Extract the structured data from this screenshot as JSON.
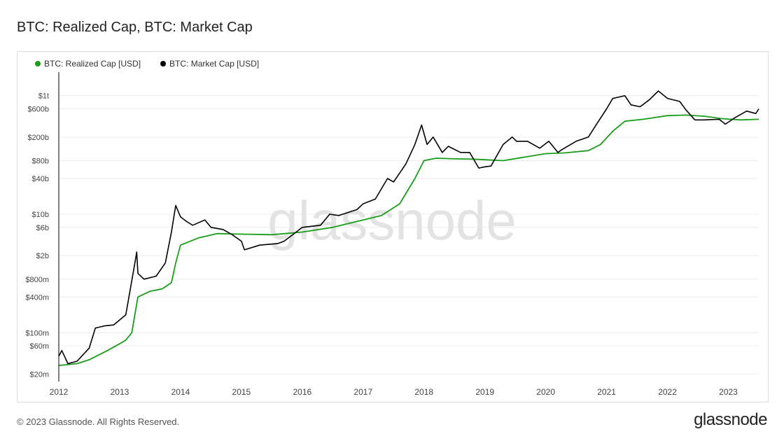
{
  "page": {
    "title": "BTC: Realized Cap, BTC: Market Cap",
    "footer": "© 2023 Glassnode. All Rights Reserved.",
    "brand": "glassnode",
    "watermark": "glassnode"
  },
  "chart_data": {
    "type": "line",
    "title": "BTC: Realized Cap, BTC: Market Cap",
    "xlabel": "",
    "ylabel": "",
    "yscale": "log",
    "ylim": [
      15000000,
      2500000000000
    ],
    "xlim": [
      2012.0,
      2023.5
    ],
    "grid": true,
    "legend_position": "top-left",
    "y_ticks": [
      {
        "value": 20000000,
        "label": "$20m"
      },
      {
        "value": 60000000,
        "label": "$60m"
      },
      {
        "value": 100000000,
        "label": "$100m"
      },
      {
        "value": 400000000,
        "label": "$400m"
      },
      {
        "value": 800000000,
        "label": "$800m"
      },
      {
        "value": 2000000000,
        "label": "$2b"
      },
      {
        "value": 6000000000,
        "label": "$6b"
      },
      {
        "value": 10000000000,
        "label": "$10b"
      },
      {
        "value": 40000000000,
        "label": "$40b"
      },
      {
        "value": 80000000000,
        "label": "$80b"
      },
      {
        "value": 200000000000,
        "label": "$200b"
      },
      {
        "value": 600000000000,
        "label": "$600b"
      },
      {
        "value": 1000000000000,
        "label": "$1t"
      }
    ],
    "x_ticks": [
      {
        "value": 2012,
        "label": "2012"
      },
      {
        "value": 2013,
        "label": "2013"
      },
      {
        "value": 2014,
        "label": "2014"
      },
      {
        "value": 2015,
        "label": "2015"
      },
      {
        "value": 2016,
        "label": "2016"
      },
      {
        "value": 2017,
        "label": "2017"
      },
      {
        "value": 2018,
        "label": "2018"
      },
      {
        "value": 2019,
        "label": "2019"
      },
      {
        "value": 2020,
        "label": "2020"
      },
      {
        "value": 2021,
        "label": "2021"
      },
      {
        "value": 2022,
        "label": "2022"
      },
      {
        "value": 2023,
        "label": "2023"
      }
    ],
    "series": [
      {
        "name": "BTC: Realized Cap [USD]",
        "color": "#1a9e1a",
        "x": [
          2012.0,
          2012.3,
          2012.5,
          2012.8,
          2013.0,
          2013.1,
          2013.2,
          2013.3,
          2013.5,
          2013.7,
          2013.85,
          2013.92,
          2014.0,
          2014.3,
          2014.6,
          2015.0,
          2015.5,
          2016.0,
          2016.5,
          2017.0,
          2017.3,
          2017.6,
          2017.85,
          2018.0,
          2018.2,
          2018.5,
          2018.8,
          2019.0,
          2019.3,
          2019.6,
          2020.0,
          2020.3,
          2020.7,
          2020.9,
          2021.1,
          2021.3,
          2021.6,
          2022.0,
          2022.3,
          2022.6,
          2022.9,
          2023.2,
          2023.5
        ],
        "values": [
          28000000,
          30000000,
          35000000,
          50000000,
          65000000,
          75000000,
          100000000,
          400000000,
          500000000,
          550000000,
          700000000,
          1500000000,
          3000000000,
          4000000000,
          4700000000,
          4600000000,
          4500000000,
          5000000000,
          6000000000,
          8000000000,
          9500000000,
          15000000000,
          40000000000,
          80000000000,
          88000000000,
          86000000000,
          85000000000,
          83000000000,
          80000000000,
          90000000000,
          105000000000,
          108000000000,
          118000000000,
          150000000000,
          250000000000,
          370000000000,
          400000000000,
          460000000000,
          470000000000,
          450000000000,
          410000000000,
          390000000000,
          400000000000
        ]
      },
      {
        "name": "BTC: Market Cap [USD]",
        "color": "#000000",
        "x": [
          2012.0,
          2012.05,
          2012.15,
          2012.3,
          2012.5,
          2012.6,
          2012.75,
          2012.9,
          2013.1,
          2013.25,
          2013.28,
          2013.3,
          2013.4,
          2013.6,
          2013.75,
          2013.85,
          2013.92,
          2014.0,
          2014.1,
          2014.2,
          2014.4,
          2014.5,
          2014.7,
          2014.85,
          2015.0,
          2015.05,
          2015.3,
          2015.6,
          2015.7,
          2015.9,
          2016.0,
          2016.3,
          2016.45,
          2016.6,
          2016.9,
          2017.0,
          2017.2,
          2017.4,
          2017.5,
          2017.7,
          2017.85,
          2017.96,
          2018.05,
          2018.15,
          2018.3,
          2018.4,
          2018.6,
          2018.75,
          2018.9,
          2019.0,
          2019.1,
          2019.3,
          2019.45,
          2019.52,
          2019.7,
          2019.9,
          2020.05,
          2020.2,
          2020.25,
          2020.5,
          2020.7,
          2020.85,
          2021.0,
          2021.1,
          2021.3,
          2021.4,
          2021.55,
          2021.7,
          2021.85,
          2022.0,
          2022.2,
          2022.3,
          2022.45,
          2022.6,
          2022.85,
          2022.95,
          2023.1,
          2023.3,
          2023.45,
          2023.5
        ],
        "values": [
          40000000,
          50000000,
          30000000,
          33000000,
          55000000,
          120000000,
          130000000,
          135000000,
          200000000,
          1500000000,
          2300000000,
          1000000000,
          800000000,
          900000000,
          1500000000,
          5000000000,
          14000000000,
          9000000000,
          7500000000,
          6500000000,
          8000000000,
          6000000000,
          5500000000,
          4500000000,
          3500000000,
          2500000000,
          3000000000,
          3200000000,
          3500000000,
          5000000000,
          6000000000,
          6500000000,
          10000000000,
          9500000000,
          12000000000,
          15000000000,
          18000000000,
          40000000000,
          35000000000,
          70000000000,
          150000000000,
          320000000000,
          150000000000,
          200000000000,
          110000000000,
          140000000000,
          110000000000,
          110000000000,
          60000000000,
          63000000000,
          65000000000,
          150000000000,
          200000000000,
          170000000000,
          170000000000,
          130000000000,
          170000000000,
          110000000000,
          120000000000,
          170000000000,
          200000000000,
          350000000000,
          600000000000,
          900000000000,
          1000000000000,
          700000000000,
          650000000000,
          850000000000,
          1200000000000,
          900000000000,
          800000000000,
          580000000000,
          390000000000,
          390000000000,
          400000000000,
          330000000000,
          420000000000,
          550000000000,
          500000000000,
          600000000000
        ]
      }
    ]
  }
}
